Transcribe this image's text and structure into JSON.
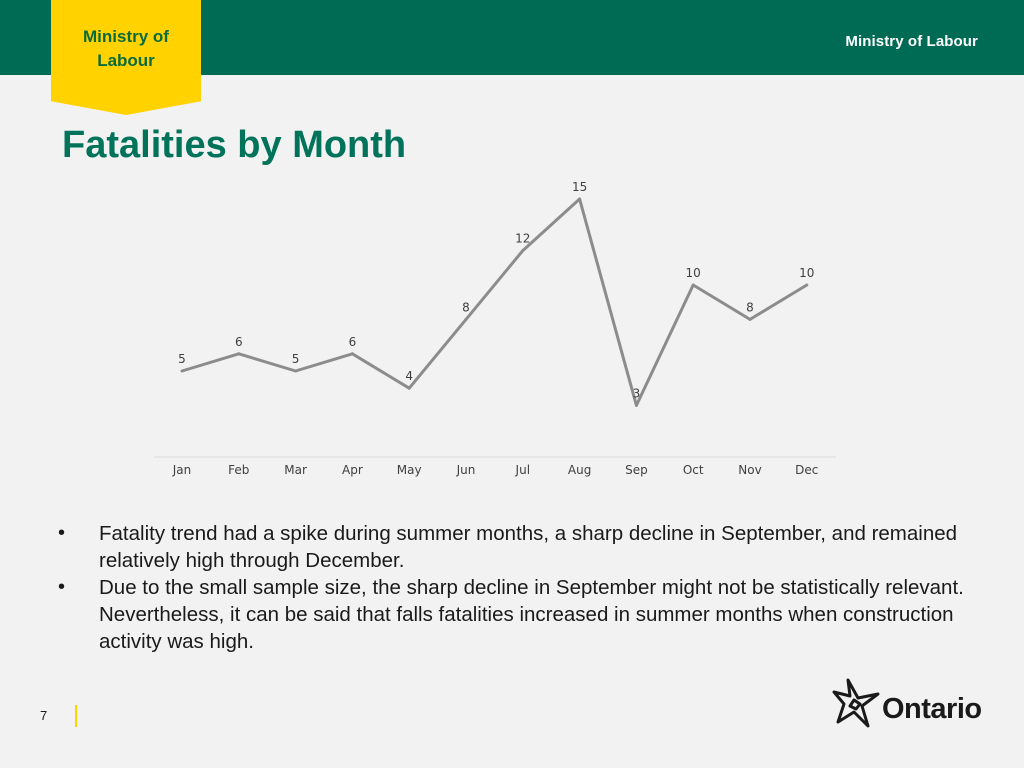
{
  "header": {
    "tab_text": "Ministry of\nLabour",
    "right_text": "Ministry of Labour"
  },
  "title": "Fatalities by Month",
  "chart_data": {
    "type": "line",
    "categories": [
      "Jan",
      "Feb",
      "Mar",
      "Apr",
      "May",
      "Jun",
      "Jul",
      "Aug",
      "Sep",
      "Oct",
      "Nov",
      "Dec"
    ],
    "series": [
      {
        "values": [
          5,
          6,
          5,
          6,
          4,
          8,
          12,
          15,
          3,
          10,
          8,
          10
        ]
      }
    ],
    "data_labels": true,
    "ylim": [
      0,
      16
    ],
    "grid": false,
    "legend": "none",
    "xlabel": "",
    "ylabel": ""
  },
  "bullets": [
    "Fatality trend had a spike during summer months, a sharp decline in September, and remained relatively high through December.",
    "Due to the small sample size, the sharp decline in September might not be statistically relevant. Nevertheless, it can be said that falls fatalities increased in summer months when construction activity was high."
  ],
  "footer": {
    "page_number": "7",
    "logo_text": "Ontario"
  },
  "colors": {
    "header_green": "#006b54",
    "tab_yellow": "#ffd200",
    "tab_text": "#0b6b3a",
    "title_green": "#00735a",
    "series_line": "#8c8c8c",
    "divider_yellow": "#ffd200"
  },
  "icons": {
    "logo": "trillium-icon"
  }
}
